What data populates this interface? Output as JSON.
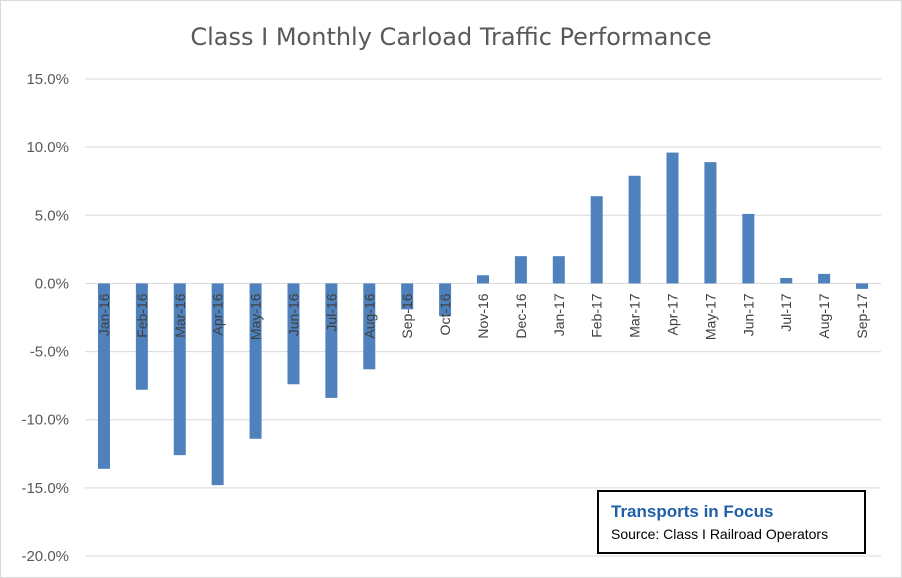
{
  "chart_data": {
    "type": "bar",
    "title": "Class I Monthly Carload Traffic Performance",
    "xlabel": "",
    "ylabel": "",
    "ylim": [
      -20,
      15
    ],
    "yticks": [
      "15.0%",
      "10.0%",
      "5.0%",
      "0.0%",
      "-5.0%",
      "-10.0%",
      "-15.0%",
      "-20.0%"
    ],
    "ytick_values": [
      15,
      10,
      5,
      0,
      -5,
      -10,
      -15,
      -20
    ],
    "grid": true,
    "legend": "none",
    "bar_color": "#4f81bd",
    "categories": [
      "Jan-16",
      "Feb-16",
      "Mar-16",
      "Apr-16",
      "May-16",
      "Jun-16",
      "Jul-16",
      "Aug-16",
      "Sep-16",
      "Oct-16",
      "Nov-16",
      "Dec-16",
      "Jan-17",
      "Feb-17",
      "Mar-17",
      "Apr-17",
      "May-17",
      "Jun-17",
      "Jul-17",
      "Aug-17",
      "Sep-17"
    ],
    "values": [
      -13.6,
      -7.8,
      -12.6,
      -14.8,
      -11.4,
      -7.4,
      -8.4,
      -6.3,
      -1.9,
      -2.4,
      0.6,
      2.0,
      2.0,
      6.4,
      7.9,
      9.6,
      8.9,
      5.1,
      0.4,
      0.7,
      -0.4
    ]
  },
  "source_box": {
    "brand": "Transports  in Focus",
    "source": "Source: Class I Railroad Operators"
  }
}
